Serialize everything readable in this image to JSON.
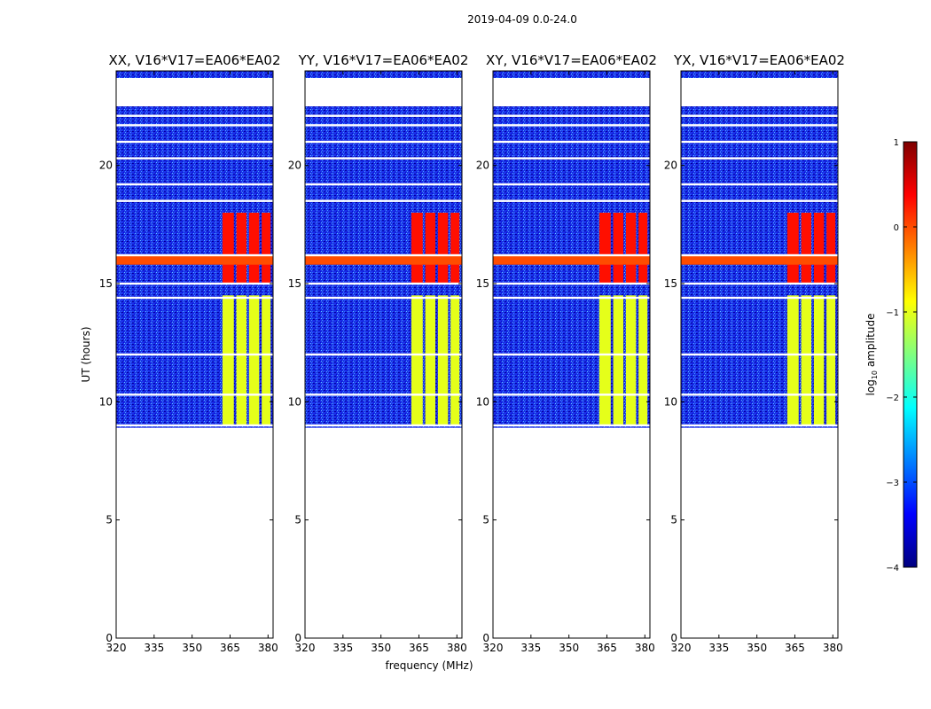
{
  "figure": {
    "suptitle": "2019-04-09 0.0-24.0"
  },
  "chart_data": {
    "type": "heatmap",
    "title": "2019-04-09 0.0-24.0",
    "xlabel": "frequency (MHz)",
    "ylabel": "UT (hours)",
    "xlim": [
      320,
      382
    ],
    "ylim": [
      0,
      24
    ],
    "x_ticks": [
      "320",
      "335",
      "350",
      "365",
      "380"
    ],
    "y_ticks": [
      "0",
      "5",
      "10",
      "15",
      "20"
    ],
    "panels": [
      {
        "title": "XX, V16*V17=EA06*EA02",
        "pol": "XX"
      },
      {
        "title": "YY, V16*V17=EA06*EA02",
        "pol": "YY"
      },
      {
        "title": "XY, V16*V17=EA06*EA02",
        "pol": "XY"
      },
      {
        "title": "YX, V16*V17=EA06*EA02",
        "pol": "YX"
      }
    ],
    "data_time_range": [
      8.9,
      22.5
    ],
    "extra_time_strip": [
      23.7,
      24.0
    ],
    "blank_rows": [
      9.0,
      10.3,
      12.0,
      14.4,
      15.0,
      16.2,
      18.5,
      19.2,
      20.3,
      21.0,
      21.7,
      22.1
    ],
    "rfi_band_mhz": [
      362,
      381
    ],
    "rfi_channel_edges_mhz": [
      362,
      366.5,
      367.5,
      371.5,
      372.5,
      376.5,
      377.5,
      381
    ],
    "features": [
      {
        "name": "strong RFI band",
        "t_range": [
          15.0,
          18.0
        ],
        "f_range": [
          362,
          381
        ],
        "log10_amplitude": 0.3
      },
      {
        "name": "broadband RFI",
        "t_range": [
          15.8,
          16.2
        ],
        "f_range": [
          320,
          382
        ],
        "log10_amplitude": 0.0
      },
      {
        "name": "moderate RFI",
        "t_range": [
          9.0,
          14.5
        ],
        "f_range": [
          362,
          381
        ],
        "log10_amplitude": -1.0
      },
      {
        "name": "background",
        "t_range": [
          8.9,
          22.5
        ],
        "f_range": [
          320,
          382
        ],
        "log10_amplitude": -3.2
      }
    ],
    "colorbar": {
      "label": "log10 amplitude",
      "label_base": "log",
      "label_sub": "10",
      "label_rest": " amplitude",
      "range": [
        -4,
        1
      ],
      "ticks": [
        "1",
        "0",
        "−1",
        "−2",
        "−3",
        "−4"
      ],
      "colormap": "jet"
    }
  }
}
